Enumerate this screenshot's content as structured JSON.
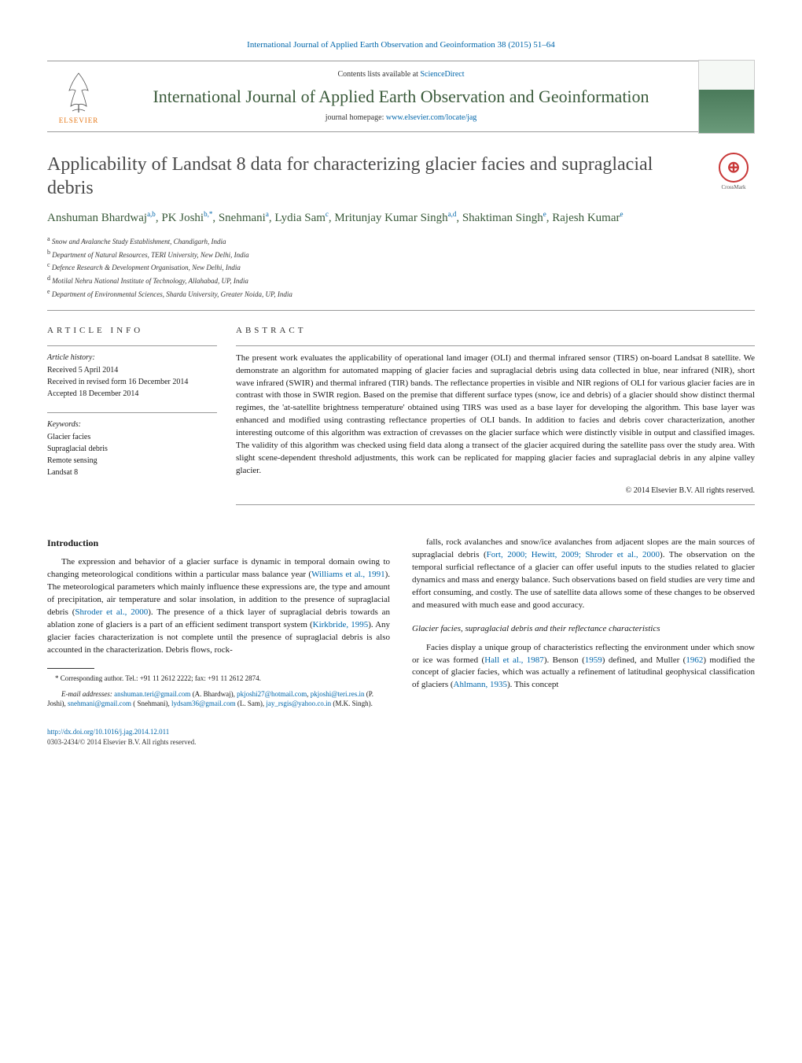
{
  "header": {
    "citation_line": "International Journal of Applied Earth Observation and Geoinformation 38 (2015) 51–64",
    "contents_available": "Contents lists available at ",
    "sciencedirect": "ScienceDirect",
    "journal_name": "International Journal of Applied Earth Observation and Geoinformation",
    "homepage_prefix": "journal homepage: ",
    "homepage_url": "www.elsevier.com/locate/jag",
    "publisher": "ELSEVIER"
  },
  "crossmark": {
    "label": "CrossMark"
  },
  "article": {
    "title": "Applicability of Landsat 8 data for characterizing glacier facies and supraglacial debris",
    "authors_html": "Anshuman Bhardwaj",
    "authors": [
      {
        "name": "Anshuman Bhardwaj",
        "aff": "a,b"
      },
      {
        "name": "PK Joshi",
        "aff": "b,*"
      },
      {
        "name": "Snehmani",
        "aff": "a"
      },
      {
        "name": "Lydia Sam",
        "aff": "c"
      },
      {
        "name": "Mritunjay Kumar Singh",
        "aff": "a,d"
      },
      {
        "name": "Shaktiman Singh",
        "aff": "e"
      },
      {
        "name": "Rajesh Kumar",
        "aff": "e"
      }
    ],
    "affiliations": [
      {
        "sup": "a",
        "text": "Snow and Avalanche Study Establishment, Chandigarh, India"
      },
      {
        "sup": "b",
        "text": "Department of Natural Resources, TERI University, New Delhi, India"
      },
      {
        "sup": "c",
        "text": "Defence Research & Development Organisation, New Delhi, India"
      },
      {
        "sup": "d",
        "text": "Motilal Nehru National Institute of Technology, Allahabad, UP, India"
      },
      {
        "sup": "e",
        "text": "Department of Environmental Sciences, Sharda University, Greater Noida, UP, India"
      }
    ]
  },
  "article_info": {
    "label": "ARTICLE INFO",
    "history_title": "Article history:",
    "received": "Received 5 April 2014",
    "revised": "Received in revised form 16 December 2014",
    "accepted": "Accepted 18 December 2014",
    "keywords_title": "Keywords:",
    "keywords": [
      "Glacier facies",
      "Supraglacial debris",
      "Remote sensing",
      "Landsat 8"
    ]
  },
  "abstract": {
    "label": "ABSTRACT",
    "text": "The present work evaluates the applicability of operational land imager (OLI) and thermal infrared sensor (TIRS) on-board Landsat 8 satellite. We demonstrate an algorithm for automated mapping of glacier facies and supraglacial debris using data collected in blue, near infrared (NIR), short wave infrared (SWIR) and thermal infrared (TIR) bands. The reflectance properties in visible and NIR regions of OLI for various glacier facies are in contrast with those in SWIR region. Based on the premise that different surface types (snow, ice and debris) of a glacier should show distinct thermal regimes, the 'at-satellite brightness temperature' obtained using TIRS was used as a base layer for developing the algorithm. This base layer was enhanced and modified using contrasting reflectance properties of OLI bands. In addition to facies and debris cover characterization, another interesting outcome of this algorithm was extraction of crevasses on the glacier surface which were distinctly visible in output and classified images. The validity of this algorithm was checked using field data along a transect of the glacier acquired during the satellite pass over the study area. With slight scene-dependent threshold adjustments, this work can be replicated for mapping glacier facies and supraglacial debris in any alpine valley glacier.",
    "copyright": "© 2014 Elsevier B.V. All rights reserved."
  },
  "body": {
    "intro_title": "Introduction",
    "intro_p1": "The expression and behavior of a glacier surface is dynamic in temporal domain owing to changing meteorological conditions within a particular mass balance year (Williams et al., 1991). The meteorological parameters which mainly influence these expressions are, the type and amount of precipitation, air temperature and solar insolation, in addition to the presence of supraglacial debris (Shroder et al., 2000). The presence of a thick layer of supraglacial debris towards an ablation zone of glaciers is a part of an efficient sediment transport system (Kirkbride, 1995). Any glacier facies characterization is not complete until the presence of supraglacial debris is also accounted in the characterization. Debris flows, rock-",
    "intro_p2": "falls, rock avalanches and snow/ice avalanches from adjacent slopes are the main sources of supraglacial debris (Fort, 2000; Hewitt, 2009; Shroder et al., 2000). The observation on the temporal surficial reflectance of a glacier can offer useful inputs to the studies related to glacier dynamics and mass and energy balance. Such observations based on field studies are very time and effort consuming, and costly. The use of satellite data allows some of these changes to be observed and measured with much ease and good accuracy.",
    "sub_title": "Glacier facies, supraglacial debris and their reflectance characteristics",
    "sub_p1": "Facies display a unique group of characteristics reflecting the environment under which snow or ice was formed (Hall et al., 1987). Benson (1959) defined, and Muller (1962) modified the concept of glacier facies, which was actually a refinement of latitudinal geophysical classification of glaciers (Ahlmann, 1935). This concept"
  },
  "footnote": {
    "corr": "* Corresponding author. Tel.: +91 11 2612 2222; fax: +91 11 2612 2874.",
    "email_label": "E-mail addresses: ",
    "emails": "anshuman.teri@gmail.com (A. Bhardwaj), pkjoshi27@hotmail.com, pkjoshi@teri.res.in (P. Joshi), snehmani@gmail.com ( Snehmani), lydsam36@gmail.com (L. Sam), jay_rsgis@yahoo.co.in (M.K. Singh)."
  },
  "footer": {
    "doi": "http://dx.doi.org/10.1016/j.jag.2014.12.011",
    "issn_line": "0303-2434/© 2014 Elsevier B.V. All rights reserved."
  },
  "colors": {
    "link": "#0066aa",
    "journal_green": "#3a5a3a",
    "elsevier_orange": "#e67817",
    "crossmark_red": "#c83737",
    "rule": "#999999"
  }
}
